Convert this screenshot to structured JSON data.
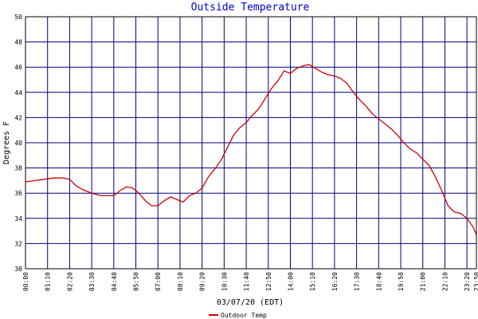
{
  "chart_data": {
    "type": "line",
    "title": "Outside Temperature",
    "xlabel": "03/07/20 (EDT)",
    "ylabel": "Degrees F",
    "ylim": [
      30,
      50
    ],
    "yticks": [
      30,
      32,
      34,
      36,
      38,
      40,
      42,
      44,
      46,
      48,
      50
    ],
    "xlim": [
      "00:00",
      "23:50"
    ],
    "x_tick_labels": [
      "00:00",
      "01:10",
      "02:20",
      "03:30",
      "04:40",
      "05:50",
      "07:00",
      "08:10",
      "09:20",
      "10:30",
      "11:40",
      "12:50",
      "14:00",
      "15:10",
      "16:20",
      "17:30",
      "18:40",
      "19:50",
      "21:00",
      "22:10",
      "23:20"
    ],
    "x_end_label": "23:50",
    "grid": true,
    "legend_position": "bottom",
    "colors": {
      "line": "#cc0000",
      "grid": "#000080",
      "title": "#0000cc"
    },
    "series": [
      {
        "name": "Outdoor Temp",
        "x": [
          "00:00",
          "00:30",
          "01:00",
          "01:30",
          "02:00",
          "02:20",
          "02:40",
          "03:00",
          "03:30",
          "04:00",
          "04:40",
          "05:00",
          "05:20",
          "05:40",
          "06:00",
          "06:20",
          "06:40",
          "07:00",
          "07:20",
          "07:40",
          "08:00",
          "08:20",
          "08:40",
          "09:00",
          "09:20",
          "09:40",
          "10:00",
          "10:20",
          "10:40",
          "11:00",
          "11:20",
          "11:40",
          "12:00",
          "12:20",
          "12:40",
          "13:00",
          "13:20",
          "13:40",
          "14:00",
          "14:10",
          "14:20",
          "14:40",
          "15:00",
          "15:20",
          "15:40",
          "16:00",
          "16:20",
          "16:40",
          "17:00",
          "17:20",
          "17:40",
          "18:00",
          "18:20",
          "18:40",
          "19:00",
          "19:20",
          "19:40",
          "20:00",
          "20:20",
          "20:40",
          "21:00",
          "21:20",
          "21:40",
          "22:00",
          "22:20",
          "22:40",
          "23:00",
          "23:20",
          "23:40",
          "23:50"
        ],
        "values": [
          36.9,
          37.0,
          37.1,
          37.2,
          37.2,
          37.1,
          36.6,
          36.3,
          36.0,
          35.8,
          35.8,
          36.2,
          36.5,
          36.4,
          36.0,
          35.4,
          35.0,
          35.0,
          35.4,
          35.7,
          35.5,
          35.3,
          35.8,
          36.0,
          36.4,
          37.3,
          37.9,
          38.6,
          39.6,
          40.6,
          41.2,
          41.6,
          42.2,
          42.7,
          43.5,
          44.3,
          44.9,
          45.7,
          45.5,
          45.7,
          45.9,
          46.1,
          46.2,
          45.9,
          45.6,
          45.4,
          45.3,
          45.1,
          44.7,
          44.0,
          43.4,
          42.9,
          42.3,
          41.9,
          41.5,
          41.1,
          40.6,
          40.0,
          39.5,
          39.2,
          38.7,
          38.2,
          37.3,
          36.2,
          35.0,
          34.5,
          34.4,
          34.0,
          33.3,
          32.7
        ]
      }
    ]
  }
}
